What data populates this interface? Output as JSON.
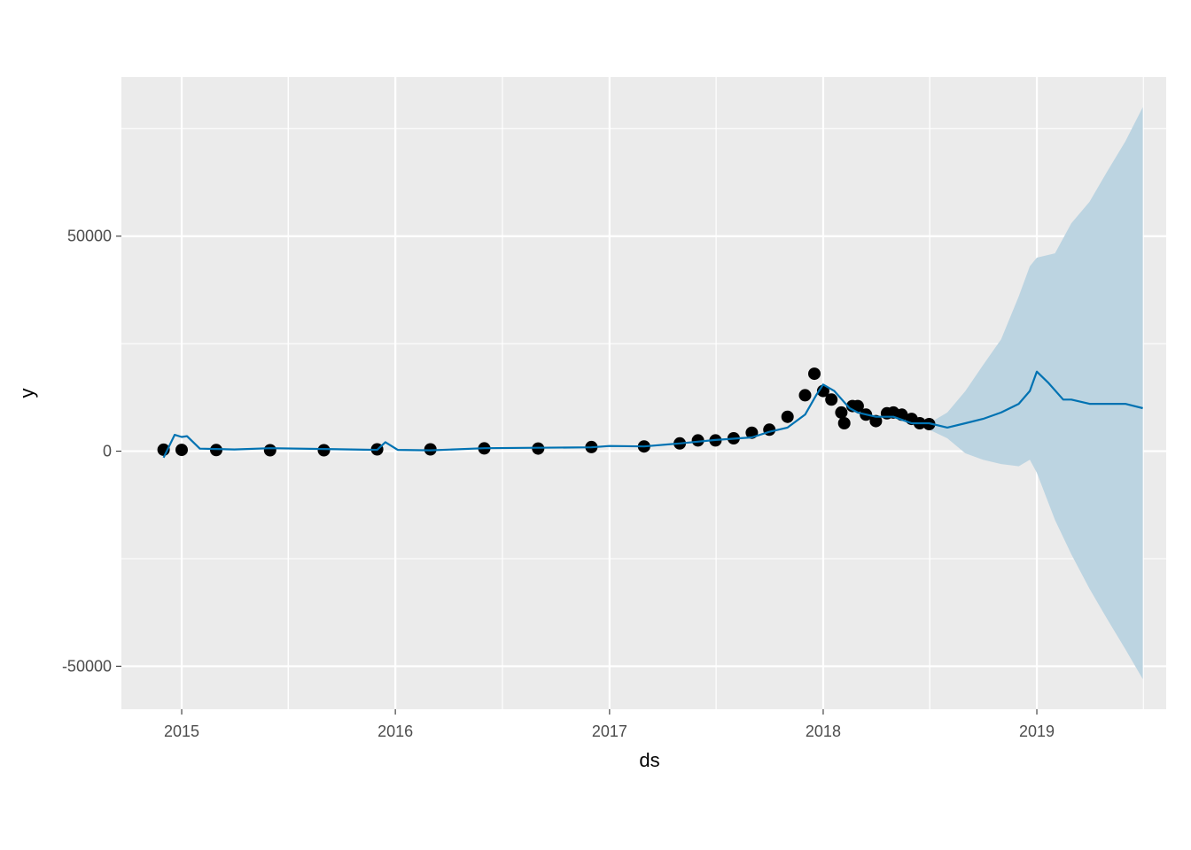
{
  "chart_data": {
    "type": "line",
    "title": "",
    "xlabel": "ds",
    "ylabel": "y",
    "x_ticks": [
      "2015",
      "2016",
      "2017",
      "2018",
      "2019"
    ],
    "y_ticks": [
      -50000,
      0,
      50000
    ],
    "xlim": [
      "2014-09-20",
      "2019-08-10"
    ],
    "ylim": [
      -60000,
      87000
    ],
    "grid": true,
    "legend": "none",
    "colors": {
      "panel_background": "#ebebeb",
      "grid_major": "#ffffff",
      "points": "#000000",
      "forecast_line": "#0072b2",
      "uncertainty_band": "#bcd4e1"
    },
    "series": [
      {
        "kind": "observed",
        "x": [
          "2014-12-01",
          "2015-01-01",
          "2015-03-01",
          "2015-06-01",
          "2015-09-01",
          "2015-12-01",
          "2016-03-01",
          "2016-06-01",
          "2016-09-01",
          "2016-12-01",
          "2017-03-01",
          "2017-05-01",
          "2017-06-01",
          "2017-07-01",
          "2017-08-01",
          "2017-09-01",
          "2017-10-01",
          "2017-11-01",
          "2017-12-01",
          "2017-12-17",
          "2018-01-01",
          "2018-01-15",
          "2018-02-01",
          "2018-02-06",
          "2018-02-20",
          "2018-03-01",
          "2018-03-15",
          "2018-04-01",
          "2018-04-20",
          "2018-05-01",
          "2018-05-15",
          "2018-06-01",
          "2018-06-15",
          "2018-07-01"
        ],
        "y": [
          350,
          300,
          270,
          230,
          230,
          420,
          420,
          650,
          610,
          970,
          1100,
          1800,
          2500,
          2500,
          3000,
          4300,
          5000,
          8000,
          13000,
          18000,
          14000,
          12000,
          9000,
          6500,
          10500,
          10500,
          8500,
          7000,
          8800,
          9000,
          8500,
          7500,
          6500,
          6300
        ]
      },
      {
        "kind": "forecast",
        "x": [
          "2014-12-01",
          "2014-12-10",
          "2014-12-20",
          "2015-01-01",
          "2015-01-10",
          "2015-02-01",
          "2015-03-01",
          "2015-04-01",
          "2015-06-01",
          "2015-09-01",
          "2015-12-01",
          "2015-12-15",
          "2016-01-05",
          "2016-03-01",
          "2016-06-01",
          "2016-09-01",
          "2016-12-01",
          "2017-01-01",
          "2017-03-01",
          "2017-05-01",
          "2017-07-01",
          "2017-09-01",
          "2017-10-01",
          "2017-11-01",
          "2017-12-01",
          "2017-12-20",
          "2018-01-01",
          "2018-01-20",
          "2018-02-15",
          "2018-03-01",
          "2018-04-01",
          "2018-05-01",
          "2018-06-01",
          "2018-07-01",
          "2018-08-01",
          "2018-09-01",
          "2018-10-01",
          "2018-11-01",
          "2018-12-01",
          "2018-12-20",
          "2019-01-01",
          "2019-01-20",
          "2019-02-15",
          "2019-03-01",
          "2019-04-01",
          "2019-05-01",
          "2019-06-01",
          "2019-07-01"
        ],
        "y": [
          -1500,
          1000,
          3800,
          3300,
          3500,
          600,
          500,
          400,
          700,
          500,
          300,
          2100,
          300,
          200,
          700,
          800,
          900,
          1200,
          1100,
          1800,
          2600,
          3200,
          4500,
          5500,
          8500,
          13000,
          15500,
          14000,
          10000,
          9000,
          8000,
          8000,
          6500,
          6500,
          5500,
          6500,
          7500,
          9000,
          11000,
          14000,
          18500,
          16000,
          12000,
          12000,
          11000,
          11000,
          11000,
          10000
        ]
      },
      {
        "kind": "uncertainty",
        "x": [
          "2018-07-01",
          "2018-08-01",
          "2018-09-01",
          "2018-10-01",
          "2018-11-01",
          "2018-12-01",
          "2018-12-20",
          "2019-01-01",
          "2019-02-01",
          "2019-03-01",
          "2019-04-01",
          "2019-05-01",
          "2019-06-01",
          "2019-07-01"
        ],
        "upper": [
          6500,
          9000,
          14000,
          20000,
          26000,
          36000,
          43000,
          45000,
          46000,
          53000,
          58000,
          65000,
          72000,
          80000
        ],
        "lower": [
          5000,
          3000,
          -500,
          -2000,
          -3000,
          -3500,
          -2000,
          -5000,
          -16000,
          -24000,
          -32000,
          -39000,
          -46000,
          -53000
        ]
      }
    ]
  }
}
